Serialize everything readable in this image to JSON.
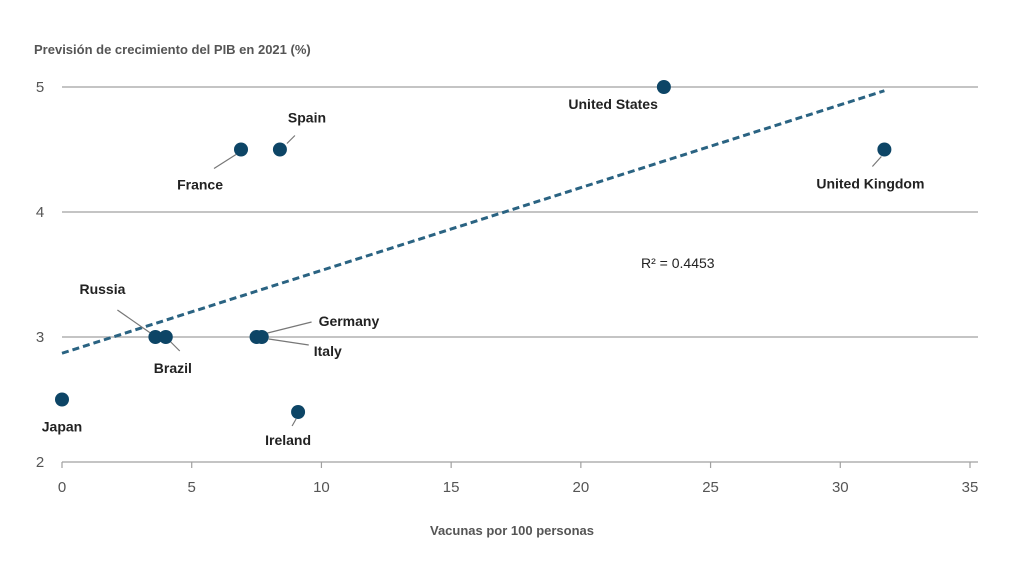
{
  "chart_data": {
    "type": "scatter",
    "title": "",
    "ylabel": "Previsión de crecimiento del PIB en 2021 (%)",
    "xlabel": "Vacunas por 100 personas",
    "xlim": [
      0,
      35
    ],
    "ylim": [
      2,
      5
    ],
    "x_ticks": [
      "0",
      "5",
      "10",
      "15",
      "20",
      "25",
      "30",
      "35"
    ],
    "y_ticks": [
      "2",
      "3",
      "4",
      "5"
    ],
    "grid": "horizontal",
    "colors": {
      "point": "#0d4566",
      "trend": "#2a6382",
      "grid": "#a0a0a0"
    },
    "points": [
      {
        "label": "United States",
        "x": 23.2,
        "y": 5.0
      },
      {
        "label": "Spain",
        "x": 8.4,
        "y": 4.5
      },
      {
        "label": "France",
        "x": 6.9,
        "y": 4.5
      },
      {
        "label": "United Kingdom",
        "x": 31.7,
        "y": 4.5
      },
      {
        "label": "Russia",
        "x": 3.6,
        "y": 3.0
      },
      {
        "label": "Brazil",
        "x": 4.0,
        "y": 3.0
      },
      {
        "label": "Germany",
        "x": 7.5,
        "y": 3.0
      },
      {
        "label": "Italy",
        "x": 7.7,
        "y": 3.0
      },
      {
        "label": "Japan",
        "x": 0.0,
        "y": 2.5
      },
      {
        "label": "Ireland",
        "x": 9.1,
        "y": 2.4
      }
    ],
    "trendline": {
      "x": [
        0,
        31.7
      ],
      "y": [
        2.87,
        4.97
      ],
      "style": "dashed"
    },
    "annotation": "R² = 0.4453"
  }
}
